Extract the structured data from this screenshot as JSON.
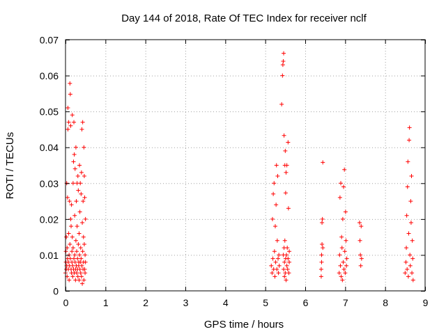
{
  "chart_data": {
    "type": "scatter",
    "title": "Day 144 of 2018, Rate Of TEC Index for receiver nclf",
    "xlabel": "GPS time / hours",
    "ylabel": "ROTI / TECUs",
    "xlim": [
      0,
      9
    ],
    "ylim": [
      0,
      0.07
    ],
    "xticks": [
      0,
      1,
      2,
      3,
      4,
      5,
      6,
      7,
      8,
      9
    ],
    "yticks": [
      0,
      0.01,
      0.02,
      0.03,
      0.04,
      0.05,
      0.06,
      0.07
    ],
    "xtick_labels": [
      "0",
      "1",
      "2",
      "3",
      "4",
      "5",
      "6",
      "7",
      "8",
      "9"
    ],
    "ytick_labels": [
      "0",
      "0.01",
      "0.02",
      "0.03",
      "0.04",
      "0.05",
      "0.06",
      "0.07"
    ],
    "grid": true,
    "marker": "+",
    "color": "#ff0000",
    "series": [
      {
        "name": "ROTI",
        "points": [
          [
            0.0,
            0.005
          ],
          [
            0.01,
            0.008
          ],
          [
            0.01,
            0.011
          ],
          [
            0.02,
            0.006
          ],
          [
            0.02,
            0.015
          ],
          [
            0.03,
            0.03
          ],
          [
            0.03,
            0.007
          ],
          [
            0.04,
            0.012
          ],
          [
            0.04,
            0.004
          ],
          [
            0.05,
            0.009
          ],
          [
            0.05,
            0.026
          ],
          [
            0.06,
            0.045
          ],
          [
            0.06,
            0.051
          ],
          [
            0.07,
            0.006
          ],
          [
            0.07,
            0.008
          ],
          [
            0.08,
            0.016
          ],
          [
            0.08,
            0.047
          ],
          [
            0.09,
            0.01
          ],
          [
            0.09,
            0.003
          ],
          [
            0.1,
            0.025
          ],
          [
            0.1,
            0.007
          ],
          [
            0.11,
            0.0578
          ],
          [
            0.11,
            0.013
          ],
          [
            0.12,
            0.0548
          ],
          [
            0.12,
            0.009
          ],
          [
            0.13,
            0.046
          ],
          [
            0.13,
            0.02
          ],
          [
            0.14,
            0.006
          ],
          [
            0.14,
            0.018
          ],
          [
            0.15,
            0.024
          ],
          [
            0.15,
            0.005
          ],
          [
            0.16,
            0.011
          ],
          [
            0.16,
            0.008
          ],
          [
            0.17,
            0.015
          ],
          [
            0.17,
            0.049
          ],
          [
            0.18,
            0.004
          ],
          [
            0.18,
            0.007
          ],
          [
            0.19,
            0.03
          ],
          [
            0.19,
            0.012
          ],
          [
            0.2,
            0.036
          ],
          [
            0.2,
            0.006
          ],
          [
            0.21,
            0.047
          ],
          [
            0.21,
            0.009
          ],
          [
            0.22,
            0.038
          ],
          [
            0.22,
            0.005
          ],
          [
            0.23,
            0.01
          ],
          [
            0.23,
            0.021
          ],
          [
            0.24,
            0.008
          ],
          [
            0.24,
            0.034
          ],
          [
            0.25,
            0.003
          ],
          [
            0.25,
            0.006
          ],
          [
            0.26,
            0.014
          ],
          [
            0.26,
            0.04
          ],
          [
            0.27,
            0.007
          ],
          [
            0.27,
            0.025
          ],
          [
            0.28,
            0.011
          ],
          [
            0.28,
            0.005
          ],
          [
            0.29,
            0.018
          ],
          [
            0.29,
            0.03
          ],
          [
            0.3,
            0.009
          ],
          [
            0.3,
            0.006
          ],
          [
            0.31,
            0.032
          ],
          [
            0.31,
            0.004
          ],
          [
            0.32,
            0.013
          ],
          [
            0.32,
            0.028
          ],
          [
            0.33,
            0.008
          ],
          [
            0.33,
            0.007
          ],
          [
            0.34,
            0.016
          ],
          [
            0.34,
            0.003
          ],
          [
            0.35,
            0.035
          ],
          [
            0.35,
            0.01
          ],
          [
            0.36,
            0.006
          ],
          [
            0.36,
            0.022
          ],
          [
            0.37,
            0.008
          ],
          [
            0.37,
            0.03
          ],
          [
            0.38,
            0.012
          ],
          [
            0.38,
            0.005
          ],
          [
            0.39,
            0.027
          ],
          [
            0.39,
            0.009
          ],
          [
            0.4,
            0.033
          ],
          [
            0.4,
            0.004
          ],
          [
            0.41,
            0.007
          ],
          [
            0.41,
            0.045
          ],
          [
            0.42,
            0.019
          ],
          [
            0.42,
            0.002
          ],
          [
            0.43,
            0.047
          ],
          [
            0.43,
            0.011
          ],
          [
            0.44,
            0.006
          ],
          [
            0.44,
            0.025
          ],
          [
            0.45,
            0.015
          ],
          [
            0.45,
            0.008
          ],
          [
            0.46,
            0.04
          ],
          [
            0.46,
            0.003
          ],
          [
            0.47,
            0.013
          ],
          [
            0.47,
            0.032
          ],
          [
            0.48,
            0.006
          ],
          [
            0.48,
            0.026
          ],
          [
            0.49,
            0.01
          ],
          [
            0.49,
            0.005
          ],
          [
            0.5,
            0.02
          ],
          [
            0.5,
            0.008
          ],
          [
            5.15,
            0.007
          ],
          [
            5.17,
            0.005
          ],
          [
            5.18,
            0.02
          ],
          [
            5.19,
            0.009
          ],
          [
            5.2,
            0.027
          ],
          [
            5.21,
            0.006
          ],
          [
            5.22,
            0.03
          ],
          [
            5.23,
            0.011
          ],
          [
            5.24,
            0.004
          ],
          [
            5.25,
            0.018
          ],
          [
            5.26,
            0.008
          ],
          [
            5.27,
            0.024
          ],
          [
            5.28,
            0.035
          ],
          [
            5.29,
            0.006
          ],
          [
            5.3,
            0.014
          ],
          [
            5.31,
            0.032
          ],
          [
            5.32,
            0.009
          ],
          [
            5.33,
            0.005
          ],
          [
            5.34,
            0.01
          ],
          [
            5.35,
            0.007
          ],
          [
            5.41,
            0.052
          ],
          [
            5.43,
            0.06
          ],
          [
            5.44,
            0.063
          ],
          [
            5.45,
            0.064
          ],
          [
            5.46,
            0.0662
          ],
          [
            5.45,
            0.01
          ],
          [
            5.46,
            0.006
          ],
          [
            5.47,
            0.012
          ],
          [
            5.47,
            0.0433
          ],
          [
            5.48,
            0.004
          ],
          [
            5.48,
            0.008
          ],
          [
            5.49,
            0.035
          ],
          [
            5.49,
            0.014
          ],
          [
            5.5,
            0.039
          ],
          [
            5.5,
            0.005
          ],
          [
            5.51,
            0.0273
          ],
          [
            5.51,
            0.009
          ],
          [
            5.52,
            0.033
          ],
          [
            5.52,
            0.003
          ],
          [
            5.53,
            0.01
          ],
          [
            5.54,
            0.035
          ],
          [
            5.54,
            0.007
          ],
          [
            5.55,
            0.012
          ],
          [
            5.56,
            0.006
          ],
          [
            5.57,
            0.0414
          ],
          [
            5.57,
            0.009
          ],
          [
            5.58,
            0.023
          ],
          [
            5.59,
            0.005
          ],
          [
            5.6,
            0.008
          ],
          [
            5.6,
            0.011
          ],
          [
            6.4,
            0.004
          ],
          [
            6.4,
            0.006
          ],
          [
            6.41,
            0.008
          ],
          [
            6.41,
            0.01
          ],
          [
            6.42,
            0.013
          ],
          [
            6.42,
            0.019
          ],
          [
            6.43,
            0.02
          ],
          [
            6.44,
            0.0358
          ],
          [
            6.44,
            0.012
          ],
          [
            6.85,
            0.005
          ],
          [
            6.86,
            0.01
          ],
          [
            6.87,
            0.026
          ],
          [
            6.88,
            0.007
          ],
          [
            6.89,
            0.03
          ],
          [
            6.9,
            0.004
          ],
          [
            6.91,
            0.015
          ],
          [
            6.92,
            0.012
          ],
          [
            6.93,
            0.003
          ],
          [
            6.94,
            0.02
          ],
          [
            6.95,
            0.008
          ],
          [
            6.96,
            0.029
          ],
          [
            6.97,
            0.006
          ],
          [
            6.98,
            0.0338
          ],
          [
            6.99,
            0.011
          ],
          [
            7.0,
            0.005
          ],
          [
            7.01,
            0.022
          ],
          [
            7.02,
            0.014
          ],
          [
            7.03,
            0.007
          ],
          [
            7.04,
            0.009
          ],
          [
            7.36,
            0.019
          ],
          [
            7.37,
            0.014
          ],
          [
            7.38,
            0.01
          ],
          [
            7.39,
            0.007
          ],
          [
            7.4,
            0.018
          ],
          [
            7.41,
            0.009
          ],
          [
            8.5,
            0.005
          ],
          [
            8.52,
            0.008
          ],
          [
            8.53,
            0.012
          ],
          [
            8.54,
            0.021
          ],
          [
            8.55,
            0.006
          ],
          [
            8.56,
            0.029
          ],
          [
            8.57,
            0.036
          ],
          [
            8.58,
            0.004
          ],
          [
            8.59,
            0.016
          ],
          [
            8.6,
            0.042
          ],
          [
            8.61,
            0.0455
          ],
          [
            8.62,
            0.01
          ],
          [
            8.63,
            0.007
          ],
          [
            8.64,
            0.025
          ],
          [
            8.65,
            0.019
          ],
          [
            8.66,
            0.032
          ],
          [
            8.67,
            0.005
          ],
          [
            8.68,
            0.014
          ],
          [
            8.69,
            0.009
          ],
          [
            8.7,
            0.003
          ]
        ]
      }
    ]
  }
}
